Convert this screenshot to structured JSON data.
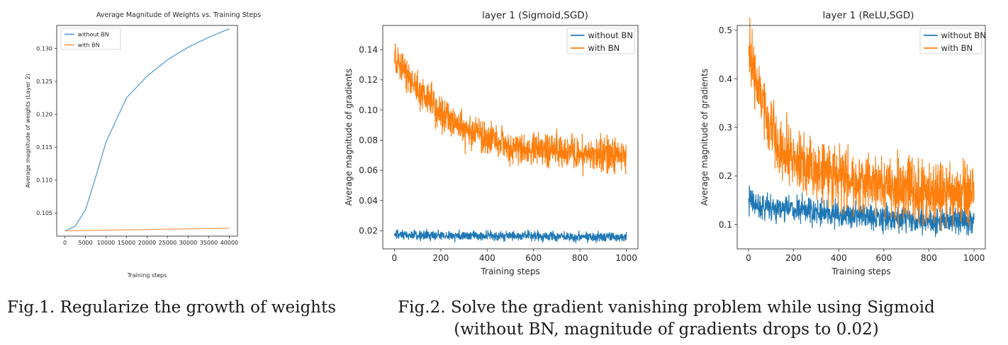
{
  "chart_data": [
    {
      "type": "line",
      "title": "Average Magnitude of Weights vs. Training Steps",
      "xlabel": "Training steps",
      "ylabel": "Average magnitude of weights (Layer 2)",
      "xlim": [
        -2000,
        42000
      ],
      "ylim": [
        0.1015,
        0.1335
      ],
      "xticks": [
        0,
        5000,
        10000,
        15000,
        20000,
        25000,
        30000,
        35000,
        40000
      ],
      "yticks": [
        0.105,
        0.11,
        0.115,
        0.12,
        0.125,
        0.13
      ],
      "tick_decimals": 3,
      "grid": false,
      "legend": "top-left",
      "series": [
        {
          "name": "without BN",
          "color": "#5a9fd4",
          "x": [
            0,
            2500,
            5000,
            7500,
            10000,
            15000,
            20000,
            25000,
            30000,
            35000,
            40000
          ],
          "y": [
            0.1023,
            0.103,
            0.1055,
            0.1105,
            0.1158,
            0.1225,
            0.1258,
            0.1283,
            0.1302,
            0.1317,
            0.133
          ]
        },
        {
          "name": "with BN",
          "color": "#f5a15b",
          "x": [
            0,
            10000,
            20000,
            30000,
            40000
          ],
          "y": [
            0.1023,
            0.1024,
            0.1025,
            0.1026,
            0.1027
          ]
        }
      ]
    },
    {
      "type": "line",
      "title": "layer 1 (Sigmoid,SGD)",
      "xlabel": "Training steps",
      "ylabel": "Average magnitude of gradients",
      "xlim": [
        -50,
        1050
      ],
      "ylim": [
        0.008,
        0.156
      ],
      "xticks": [
        0,
        200,
        400,
        600,
        800,
        1000
      ],
      "yticks": [
        0.02,
        0.04,
        0.06,
        0.08,
        0.1,
        0.12,
        0.14
      ],
      "tick_decimals": 2,
      "grid": false,
      "legend": "top-right",
      "series": [
        {
          "name": "without BN",
          "color": "#1f77b4",
          "x": [
            0,
            1000
          ],
          "y": [
            0.017,
            0.016
          ],
          "noise": 0.0016
        },
        {
          "name": "with BN",
          "color": "#ff7f0e",
          "x": [
            0,
            50,
            100,
            150,
            200,
            300,
            400,
            500,
            600,
            700,
            800,
            900,
            1000
          ],
          "y": [
            0.132,
            0.124,
            0.115,
            0.106,
            0.098,
            0.087,
            0.08,
            0.076,
            0.073,
            0.072,
            0.071,
            0.07,
            0.07
          ],
          "noise": 0.0055
        }
      ]
    },
    {
      "type": "line",
      "title": "layer 1 (ReLU,SGD)",
      "xlabel": "Training steps",
      "ylabel": "Average magnitude of gradients",
      "xlim": [
        -50,
        1050
      ],
      "ylim": [
        0.05,
        0.51
      ],
      "xticks": [
        0,
        200,
        400,
        600,
        800,
        1000
      ],
      "yticks": [
        0.1,
        0.2,
        0.3,
        0.4,
        0.5
      ],
      "tick_decimals": 1,
      "grid": false,
      "legend": "top-right",
      "series": [
        {
          "name": "without BN",
          "color": "#1f77b4",
          "x": [
            0,
            50,
            100,
            200,
            300,
            400,
            600,
            800,
            1000
          ],
          "y": [
            0.15,
            0.14,
            0.135,
            0.13,
            0.125,
            0.12,
            0.113,
            0.108,
            0.105
          ],
          "noise": 0.013
        },
        {
          "name": "with BN",
          "color": "#ff7f0e",
          "x": [
            0,
            25,
            50,
            75,
            100,
            150,
            200,
            300,
            400,
            500,
            600,
            700,
            800,
            900,
            1000
          ],
          "y": [
            0.46,
            0.41,
            0.36,
            0.32,
            0.29,
            0.255,
            0.23,
            0.21,
            0.195,
            0.185,
            0.178,
            0.172,
            0.168,
            0.165,
            0.163
          ],
          "noise": 0.032
        }
      ]
    }
  ],
  "captions": {
    "fig1": "Fig.1. Regularize the growth of weights",
    "fig2_line1": "Fig.2. Solve the gradient vanishing problem while using Sigmoid",
    "fig2_line2": "(without BN, magnitude of gradients drops to 0.02)"
  }
}
